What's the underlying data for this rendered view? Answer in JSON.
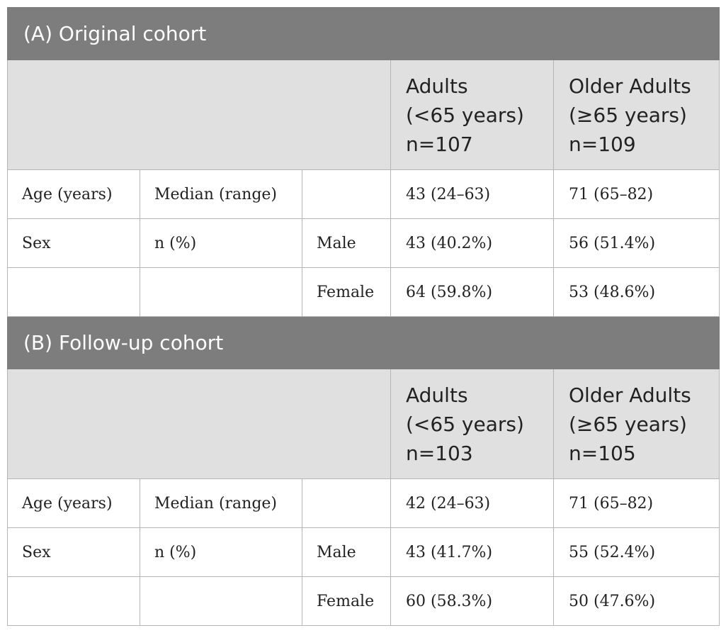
{
  "sections": [
    {
      "title": "(A) Original cohort",
      "col_adults": [
        "Adults",
        "(<65 years)",
        "n=107"
      ],
      "col_older": [
        "Older Adults",
        "(≥65 years)",
        "n=109"
      ],
      "rows": [
        {
          "c1": "Age (years)",
          "c2": "Median (range)",
          "c3": "",
          "adults": "43 (24–63)",
          "older": "71 (65–82)"
        },
        {
          "c1": "Sex",
          "c2": "n (%)",
          "c3": "Male",
          "adults": "43 (40.2%)",
          "older": "56 (51.4%)"
        },
        {
          "c1": "",
          "c2": "",
          "c3": "Female",
          "adults": "64 (59.8%)",
          "older": "53 (48.6%)"
        }
      ]
    },
    {
      "title": "(B) Follow-up cohort",
      "col_adults": [
        "Adults",
        "(<65 years)",
        "n=103"
      ],
      "col_older": [
        "Older Adults",
        "(≥65 years)",
        "n=105"
      ],
      "rows": [
        {
          "c1": "Age (years)",
          "c2": "Median (range)",
          "c3": "",
          "adults": "42 (24–63)",
          "older": "71 (65–82)"
        },
        {
          "c1": "Sex",
          "c2": "n (%)",
          "c3": "Male",
          "adults": "43 (41.7%)",
          "older": "55 (52.4%)"
        },
        {
          "c1": "",
          "c2": "",
          "c3": "Female",
          "adults": "60 (58.3%)",
          "older": "50 (47.6%)"
        }
      ]
    }
  ]
}
